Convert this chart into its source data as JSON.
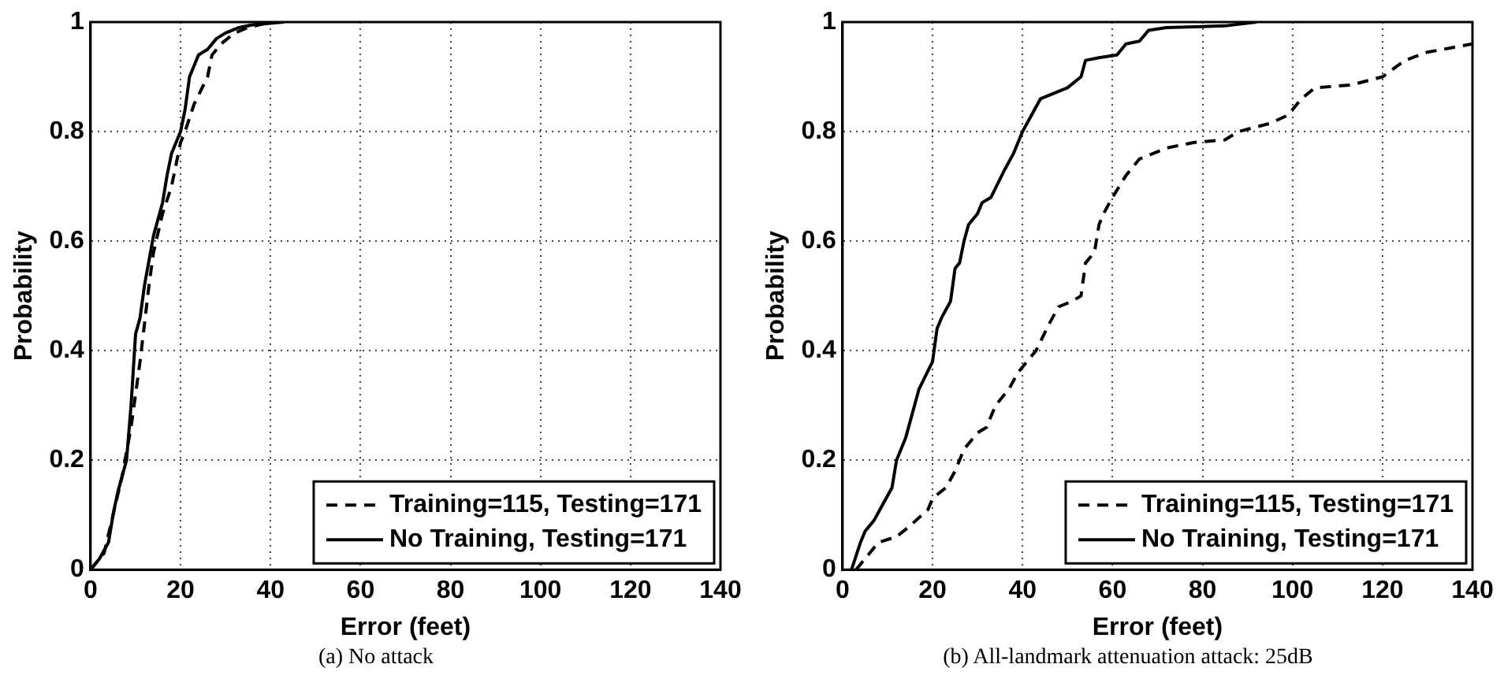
{
  "chart_data": [
    {
      "type": "line",
      "xlabel": "Error (feet)",
      "ylabel": "Probability",
      "annotations": [
        "(a) No attack"
      ],
      "xlim": [
        0,
        140
      ],
      "xticks": [
        0,
        20,
        40,
        60,
        80,
        100,
        120,
        140
      ],
      "ylim": [
        0,
        1
      ],
      "yticks": [
        0,
        0.2,
        0.4,
        0.6,
        0.8,
        1
      ],
      "grid": true,
      "legend": "bottom right",
      "marker": "none",
      "series": [
        {
          "name": "Training=115, Testing=171",
          "color": "#000000",
          "line_style": "dashed",
          "x": [
            0,
            3,
            5,
            7,
            9,
            10,
            11,
            12,
            13,
            14,
            16,
            18,
            20,
            21,
            23,
            26,
            27,
            29,
            32,
            35,
            40
          ],
          "values": [
            0,
            0.03,
            0.1,
            0.17,
            0.26,
            0.32,
            0.38,
            0.45,
            0.52,
            0.58,
            0.65,
            0.7,
            0.78,
            0.8,
            0.85,
            0.9,
            0.94,
            0.96,
            0.98,
            0.99,
            1
          ]
        },
        {
          "name": "No Training, Testing=171",
          "color": "#000000",
          "line_style": "solid",
          "x": [
            0,
            2,
            4,
            5,
            6,
            8,
            9,
            10,
            11,
            12,
            14,
            15,
            16,
            17,
            18,
            20,
            21,
            22,
            24,
            26,
            28,
            30,
            33,
            36,
            43
          ],
          "values": [
            0,
            0.02,
            0.05,
            0.1,
            0.14,
            0.2,
            0.3,
            0.43,
            0.46,
            0.52,
            0.61,
            0.64,
            0.67,
            0.72,
            0.76,
            0.8,
            0.84,
            0.9,
            0.94,
            0.95,
            0.97,
            0.98,
            0.99,
            0.995,
            1
          ]
        }
      ]
    },
    {
      "type": "line",
      "xlabel": "Error (feet)",
      "ylabel": "Probability",
      "annotations": [
        "(b) All-landmark attenuation attack: 25dB"
      ],
      "xlim": [
        0,
        140
      ],
      "xticks": [
        0,
        20,
        40,
        60,
        80,
        100,
        120,
        140
      ],
      "ylim": [
        0,
        1
      ],
      "yticks": [
        0,
        0.2,
        0.4,
        0.6,
        0.8,
        1
      ],
      "grid": true,
      "legend": "bottom right",
      "marker": "none",
      "series": [
        {
          "name": "Training=115, Testing=171",
          "color": "#000000",
          "line_style": "dashed",
          "x": [
            3,
            8,
            12,
            15,
            19,
            20,
            23,
            25,
            27,
            30,
            32,
            34,
            37,
            39,
            43,
            46,
            48,
            51,
            53,
            54,
            56,
            57,
            58,
            60,
            63,
            66,
            72,
            78,
            85,
            88,
            95,
            99,
            102,
            105,
            113,
            120,
            125,
            130,
            140
          ],
          "values": [
            0,
            0.05,
            0.06,
            0.08,
            0.11,
            0.13,
            0.15,
            0.18,
            0.22,
            0.25,
            0.26,
            0.3,
            0.33,
            0.36,
            0.4,
            0.45,
            0.48,
            0.49,
            0.5,
            0.56,
            0.58,
            0.63,
            0.65,
            0.68,
            0.72,
            0.75,
            0.77,
            0.78,
            0.785,
            0.8,
            0.815,
            0.83,
            0.86,
            0.88,
            0.885,
            0.9,
            0.93,
            0.945,
            0.96
          ]
        },
        {
          "name": "No Training, Testing=171",
          "color": "#000000",
          "line_style": "solid",
          "x": [
            2,
            4,
            5,
            7,
            9,
            11,
            12,
            14,
            16,
            17,
            20,
            21,
            22,
            24,
            25,
            26,
            27,
            28,
            30,
            31,
            33,
            36,
            38,
            40,
            42,
            44,
            47,
            50,
            53,
            54,
            57,
            61,
            63,
            66,
            68,
            72,
            85,
            92
          ],
          "values": [
            0,
            0.05,
            0.07,
            0.09,
            0.12,
            0.15,
            0.2,
            0.24,
            0.3,
            0.33,
            0.38,
            0.44,
            0.46,
            0.49,
            0.55,
            0.56,
            0.6,
            0.63,
            0.65,
            0.67,
            0.68,
            0.73,
            0.76,
            0.8,
            0.83,
            0.86,
            0.87,
            0.88,
            0.9,
            0.93,
            0.935,
            0.94,
            0.96,
            0.965,
            0.985,
            0.99,
            0.993,
            1
          ]
        }
      ]
    }
  ]
}
